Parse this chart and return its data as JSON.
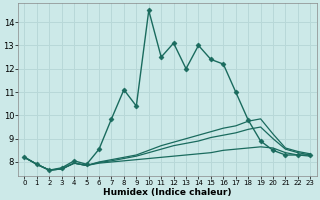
{
  "xlabel": "Humidex (Indice chaleur)",
  "xlim": [
    -0.5,
    23.5
  ],
  "ylim": [
    7.4,
    14.8
  ],
  "xticks": [
    0,
    1,
    2,
    3,
    4,
    5,
    6,
    7,
    8,
    9,
    10,
    11,
    12,
    13,
    14,
    15,
    16,
    17,
    18,
    19,
    20,
    21,
    22,
    23
  ],
  "yticks": [
    8,
    9,
    10,
    11,
    12,
    13,
    14
  ],
  "bg_color": "#cce9e8",
  "line_color": "#1a6b5e",
  "grid_color": "#b8d8d8",
  "series": [
    {
      "x": [
        0,
        1,
        2,
        3,
        4,
        5,
        6,
        7,
        8,
        9,
        10,
        11,
        12,
        13,
        14,
        15,
        16,
        17,
        18,
        19,
        20,
        21,
        22,
        23
      ],
      "y": [
        8.2,
        7.9,
        7.65,
        7.75,
        8.05,
        7.9,
        8.55,
        9.85,
        11.1,
        10.4,
        14.5,
        12.5,
        13.1,
        12.0,
        13.0,
        12.4,
        12.2,
        11.0,
        9.8,
        8.9,
        8.5,
        8.3,
        8.3,
        8.3
      ],
      "marker": "D",
      "markersize": 2.5,
      "linewidth": 1.0
    },
    {
      "x": [
        0,
        1,
        2,
        3,
        4,
        5,
        6,
        7,
        8,
        9,
        10,
        11,
        12,
        13,
        14,
        15,
        16,
        17,
        18,
        19,
        20,
        21,
        22,
        23
      ],
      "y": [
        8.2,
        7.9,
        7.65,
        7.7,
        7.95,
        7.85,
        7.95,
        8.0,
        8.05,
        8.1,
        8.15,
        8.2,
        8.25,
        8.3,
        8.35,
        8.4,
        8.5,
        8.55,
        8.6,
        8.65,
        8.6,
        8.4,
        8.3,
        8.25
      ],
      "marker": "none",
      "markersize": 0,
      "linewidth": 0.9
    },
    {
      "x": [
        0,
        1,
        2,
        3,
        4,
        5,
        6,
        7,
        8,
        9,
        10,
        11,
        12,
        13,
        14,
        15,
        16,
        17,
        18,
        19,
        20,
        21,
        22,
        23
      ],
      "y": [
        8.2,
        7.9,
        7.65,
        7.7,
        7.95,
        7.85,
        7.98,
        8.05,
        8.15,
        8.25,
        8.4,
        8.55,
        8.7,
        8.8,
        8.9,
        9.05,
        9.15,
        9.25,
        9.4,
        9.5,
        9.0,
        8.55,
        8.4,
        8.3
      ],
      "marker": "none",
      "markersize": 0,
      "linewidth": 0.9
    },
    {
      "x": [
        0,
        1,
        2,
        3,
        4,
        5,
        6,
        7,
        8,
        9,
        10,
        11,
        12,
        13,
        14,
        15,
        16,
        17,
        18,
        19,
        20,
        21,
        22,
        23
      ],
      "y": [
        8.2,
        7.9,
        7.65,
        7.7,
        7.95,
        7.85,
        8.0,
        8.1,
        8.2,
        8.3,
        8.5,
        8.7,
        8.85,
        9.0,
        9.15,
        9.3,
        9.45,
        9.55,
        9.75,
        9.85,
        9.2,
        8.6,
        8.45,
        8.35
      ],
      "marker": "none",
      "markersize": 0,
      "linewidth": 0.9
    }
  ]
}
